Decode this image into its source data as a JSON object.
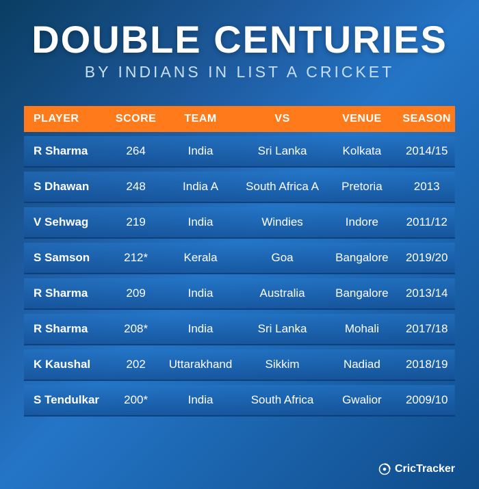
{
  "title": {
    "main": "DOUBLE CENTURIES",
    "sub": "BY INDIANS IN LIST A CRICKET"
  },
  "colors": {
    "header_bg": "#ff7a1a",
    "header_text": "#ffffff",
    "row_text": "#ffffff",
    "bg_gradient_start": "#0a3d62",
    "bg_gradient_end": "#2475c7"
  },
  "table": {
    "columns": [
      "PLAYER",
      "SCORE",
      "TEAM",
      "VS",
      "VENUE",
      "SEASON"
    ],
    "col_widths": [
      "20%",
      "12%",
      "18%",
      "20%",
      "17%",
      "13%"
    ],
    "rows": [
      [
        "R Sharma",
        "264",
        "India",
        "Sri Lanka",
        "Kolkata",
        "2014/15"
      ],
      [
        "S Dhawan",
        "248",
        "India A",
        "South Africa A",
        "Pretoria",
        "2013"
      ],
      [
        "V Sehwag",
        "219",
        "India",
        "Windies",
        "Indore",
        "2011/12"
      ],
      [
        "S Samson",
        "212*",
        "Kerala",
        "Goa",
        "Bangalore",
        "2019/20"
      ],
      [
        "R Sharma",
        "209",
        "India",
        "Australia",
        "Bangalore",
        "2013/14"
      ],
      [
        "R Sharma",
        "208*",
        "India",
        "Sri Lanka",
        "Mohali",
        "2017/18"
      ],
      [
        "K Kaushal",
        "202",
        "Uttarakhand",
        "Sikkim",
        "Nadiad",
        "2018/19"
      ],
      [
        "S Tendulkar",
        "200*",
        "India",
        "South Africa",
        "Gwalior",
        "2009/10"
      ]
    ]
  },
  "footer": {
    "brand": "CricTracker"
  }
}
